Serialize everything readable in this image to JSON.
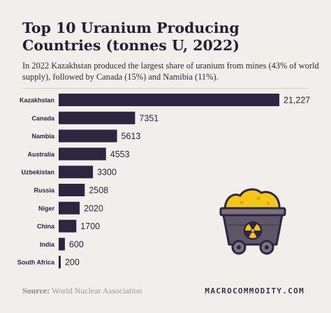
{
  "header": {
    "title": "Top 10 Uranium Producing Countries (tonnes U, 2022)",
    "subtitle": "In 2022 Kazakhstan produced the largest share of uranium from mines (43% of world supply), followed by Canada (15%) and Namibia (11%)."
  },
  "footer": {
    "source_label": "Source:",
    "source_text": " World Nuclear Association",
    "brand": "MACROCOMMODITY.COM"
  },
  "colors": {
    "bar": "#2e2540",
    "background": "#f1eeec",
    "cart_yellow": "#f5c518",
    "cart_body": "#5c5666"
  },
  "icons": {
    "illustration": "uranium-mine-cart-icon"
  },
  "chart_data": {
    "type": "bar",
    "orientation": "horizontal",
    "categories": [
      "Kazakhstan",
      "Canada",
      "Nambia",
      "Australia",
      "Uzbekistan",
      "Russia",
      "Niger",
      "China",
      "India",
      "South Africa"
    ],
    "values": [
      21227,
      7351,
      5613,
      4553,
      3300,
      2508,
      2020,
      1700,
      600,
      200
    ],
    "value_labels": [
      "21,227",
      "7351",
      "5613",
      "4553",
      "3300",
      "2508",
      "2020",
      "1700",
      "600",
      "200"
    ],
    "xlim": [
      0,
      21227
    ],
    "grid": false,
    "legend": "none"
  }
}
